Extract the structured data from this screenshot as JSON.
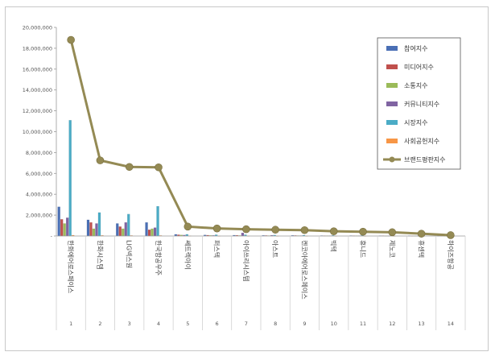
{
  "chart_data": {
    "type": "bar",
    "categories": [
      "1",
      "2",
      "3",
      "4",
      "5",
      "6",
      "7",
      "8",
      "9",
      "10",
      "11",
      "12",
      "13",
      "14"
    ],
    "category_names": [
      "한화에어로스페이스",
      "한화시스템",
      "LIG넥스원",
      "한국항공우주",
      "쎄트렉아이",
      "퍼스텍",
      "아이쓰리시스템",
      "아스트",
      "켄코아에어로스페이스",
      "빅텍",
      "휴니드",
      "제노코",
      "휴센텍",
      "하이즈항공"
    ],
    "ylim": [
      0,
      20000000
    ],
    "yticks": [
      "-",
      "2,000,000",
      "4,000,000",
      "6,000,000",
      "8,000,000",
      "10,000,000",
      "12,000,000",
      "14,000,000",
      "16,000,000",
      "18,000,000",
      "20,000,000"
    ],
    "series": [
      {
        "name": "참여지수",
        "color": "#4a6fb5",
        "values": [
          2800000,
          1550000,
          1200000,
          1300000,
          160000,
          100000,
          80000,
          60000,
          60000,
          40000,
          40000,
          30000,
          30000,
          20000
        ]
      },
      {
        "name": "미디어지수",
        "color": "#c0504d",
        "values": [
          1600000,
          1300000,
          900000,
          600000,
          120000,
          80000,
          70000,
          50000,
          50000,
          30000,
          30000,
          30000,
          20000,
          20000
        ]
      },
      {
        "name": "소통지수",
        "color": "#9bbb59",
        "values": [
          1200000,
          700000,
          700000,
          700000,
          100000,
          60000,
          50000,
          40000,
          40000,
          30000,
          30000,
          20000,
          20000,
          10000
        ]
      },
      {
        "name": "커뮤니티지수",
        "color": "#8064a2",
        "values": [
          1750000,
          1200000,
          1300000,
          800000,
          90000,
          60000,
          300000,
          70000,
          40000,
          30000,
          30000,
          20000,
          20000,
          10000
        ]
      },
      {
        "name": "시장지수",
        "color": "#4bacc6",
        "values": [
          11100000,
          2250000,
          2100000,
          2850000,
          160000,
          120000,
          120000,
          90000,
          80000,
          60000,
          60000,
          50000,
          40000,
          30000
        ]
      },
      {
        "name": "사회공헌지수",
        "color": "#f79646",
        "values": [
          80000,
          60000,
          50000,
          50000,
          20000,
          10000,
          10000,
          10000,
          10000,
          10000,
          10000,
          10000,
          10000,
          10000
        ]
      },
      {
        "name": "브랜드평판지수",
        "type": "line",
        "color": "#948a54",
        "values": [
          18800000,
          7250000,
          6620000,
          6580000,
          900000,
          720000,
          650000,
          600000,
          560000,
          450000,
          410000,
          360000,
          220000,
          80000
        ]
      }
    ]
  }
}
